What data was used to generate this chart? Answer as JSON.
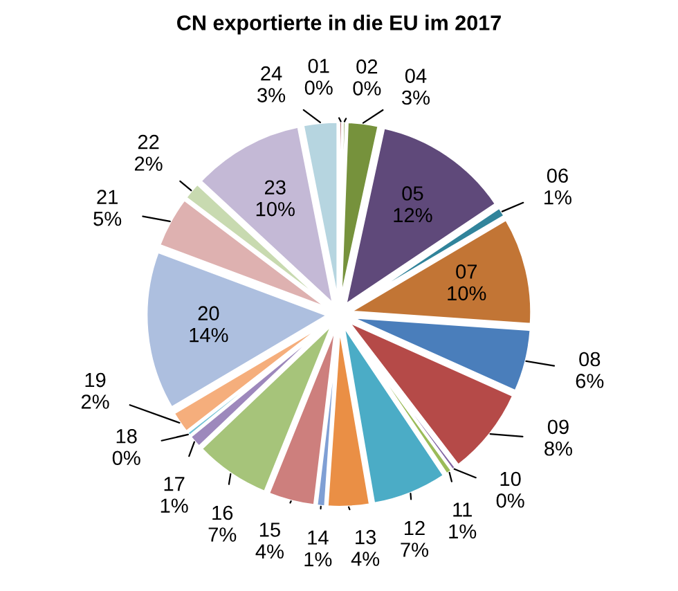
{
  "chart_data": {
    "type": "pie",
    "title": "CN exportierte in die EU im 2017",
    "categories": [
      "01",
      "02",
      "04",
      "05",
      "06",
      "07",
      "08",
      "09",
      "10",
      "11",
      "12",
      "13",
      "14",
      "15",
      "16",
      "17",
      "18",
      "19",
      "20",
      "21",
      "22",
      "23",
      "24"
    ],
    "values": [
      0.3,
      0.3,
      2.8,
      12.2,
      0.9,
      9.6,
      5.6,
      7.9,
      0.4,
      0.6,
      6.7,
      3.8,
      0.8,
      4.2,
      6.8,
      1.2,
      0.4,
      2.0,
      14.2,
      4.6,
      1.6,
      10.0,
      3.1
    ],
    "value_labels": [
      "0%",
      "0%",
      "3%",
      "12%",
      "1%",
      "10%",
      "6%",
      "8%",
      "0%",
      "1%",
      "7%",
      "4%",
      "1%",
      "4%",
      "7%",
      "1%",
      "0%",
      "2%",
      "14%",
      "5%",
      "2%",
      "10%",
      "3%"
    ],
    "colors": [
      "#943634",
      "#76923c",
      "#76923c",
      "#5f497a",
      "#31849b",
      "#c27535",
      "#4a7ebb",
      "#b54a48",
      "#8064a2",
      "#9bbb59",
      "#4bacc6",
      "#ea8f45",
      "#7f9fd4",
      "#cd7f7d",
      "#a6c47a",
      "#9d88bc",
      "#6fc0d4",
      "#f5ae7c",
      "#adbfdf",
      "#deb1b0",
      "#c8dab0",
      "#c4b9d6",
      "#b6d5e0"
    ],
    "legend": false
  }
}
